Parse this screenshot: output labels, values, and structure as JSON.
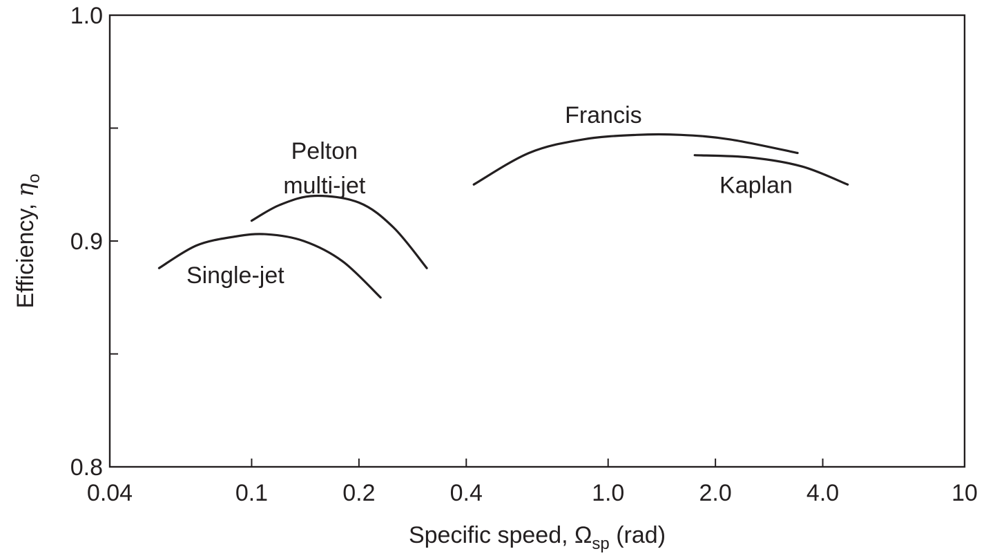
{
  "chart_data": {
    "type": "line",
    "title": "",
    "xlabel": "Specific speed, Ω",
    "xlabel_subscript": "sp",
    "xlabel_suffix": " (rad)",
    "ylabel": "Efficiency, ",
    "ylabel_symbol": "η",
    "ylabel_subscript": "o",
    "x_scale": "log",
    "xlim": [
      0.04,
      10
    ],
    "ylim": [
      0.8,
      1.0
    ],
    "grid": false,
    "legend": "none",
    "x_ticks": [
      {
        "value": 0.04,
        "label": "0.04"
      },
      {
        "value": 0.1,
        "label": "0.1"
      },
      {
        "value": 0.2,
        "label": "0.2"
      },
      {
        "value": 0.4,
        "label": "0.4"
      },
      {
        "value": 1.0,
        "label": "1.0"
      },
      {
        "value": 2.0,
        "label": "2.0"
      },
      {
        "value": 4.0,
        "label": "4.0"
      },
      {
        "value": 10,
        "label": "10"
      }
    ],
    "y_ticks": [
      {
        "value": 0.8,
        "label": "0.8"
      },
      {
        "value": 0.85,
        "label": ""
      },
      {
        "value": 0.9,
        "label": "0.9"
      },
      {
        "value": 0.95,
        "label": ""
      },
      {
        "value": 1.0,
        "label": "1.0"
      }
    ],
    "series": [
      {
        "name": "Single-jet",
        "x": [
          0.055,
          0.07,
          0.09,
          0.11,
          0.14,
          0.18,
          0.23
        ],
        "y": [
          0.888,
          0.898,
          0.902,
          0.903,
          0.9,
          0.891,
          0.875
        ]
      },
      {
        "name": "Pelton multi-jet",
        "x": [
          0.1,
          0.12,
          0.15,
          0.2,
          0.25,
          0.31
        ],
        "y": [
          0.909,
          0.916,
          0.92,
          0.917,
          0.906,
          0.888
        ]
      },
      {
        "name": "Francis",
        "x": [
          0.42,
          0.6,
          0.85,
          1.2,
          1.6,
          2.2,
          3.4
        ],
        "y": [
          0.925,
          0.939,
          0.945,
          0.947,
          0.947,
          0.945,
          0.939
        ]
      },
      {
        "name": "Kaplan",
        "x": [
          1.75,
          2.5,
          3.5,
          4.7
        ],
        "y": [
          0.938,
          0.937,
          0.933,
          0.925
        ]
      }
    ],
    "annotations": [
      {
        "series": "Single-jet",
        "lines": [
          "Single-jet"
        ],
        "x": 0.09,
        "y": 0.885
      },
      {
        "series": "Pelton multi-jet",
        "lines": [
          "Pelton",
          "multi-jet"
        ],
        "x": 0.16,
        "y": 0.94
      },
      {
        "series": "Francis",
        "lines": [
          "Francis"
        ],
        "x": 0.97,
        "y": 0.956
      },
      {
        "series": "Kaplan",
        "lines": [
          "Kaplan"
        ],
        "x": 2.6,
        "y": 0.925
      }
    ]
  }
}
